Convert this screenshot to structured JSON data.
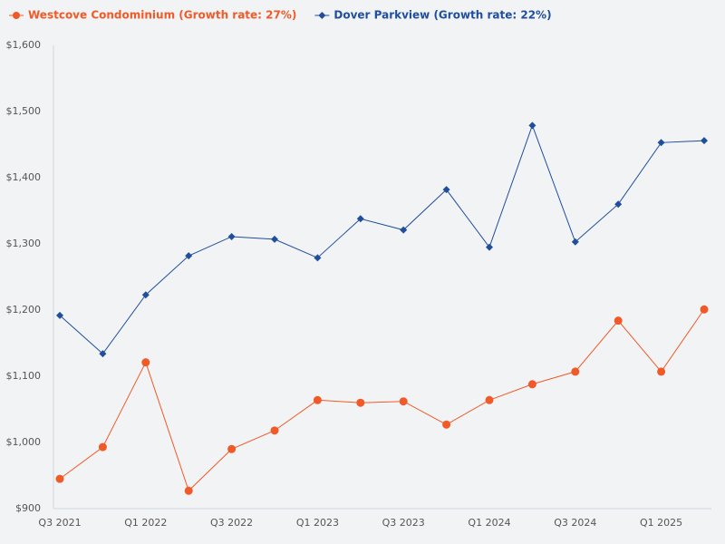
{
  "chart_data": {
    "type": "line",
    "categories": [
      "Q3 2021",
      null,
      "Q1 2022",
      null,
      "Q3 2022",
      null,
      "Q1 2023",
      null,
      "Q3 2023",
      null,
      "Q1 2024",
      null,
      "Q3 2024",
      null,
      "Q1 2025",
      null
    ],
    "series": [
      {
        "name": "Westcove Condominium (Growth rate: 27%)",
        "color": "#f05a28",
        "marker": "circle",
        "values": [
          945,
          993,
          1121,
          927,
          990,
          1018,
          1064,
          1060,
          1062,
          1027,
          1064,
          1088,
          1107,
          1184,
          1107,
          1201
        ]
      },
      {
        "name": "Dover Parkview (Growth rate: 22%)",
        "color": "#1f4e9c",
        "marker": "diamond",
        "values": [
          1192,
          1134,
          1223,
          1282,
          1311,
          1307,
          1279,
          1338,
          1321,
          1382,
          1295,
          1479,
          1303,
          1360,
          1453,
          1456
        ]
      }
    ],
    "ylim": [
      900,
      1600
    ],
    "yticks": [
      {
        "value": 900,
        "label": "$900"
      },
      {
        "value": 1000,
        "label": "$1,000"
      },
      {
        "value": 1100,
        "label": "$1,100"
      },
      {
        "value": 1200,
        "label": "$1,200"
      },
      {
        "value": 1300,
        "label": "$1,300"
      },
      {
        "value": 1400,
        "label": "$1,400"
      },
      {
        "value": 1500,
        "label": "$1,500"
      },
      {
        "value": 1600,
        "label": "$1,600"
      }
    ],
    "grid": false,
    "legend": "top-left"
  }
}
